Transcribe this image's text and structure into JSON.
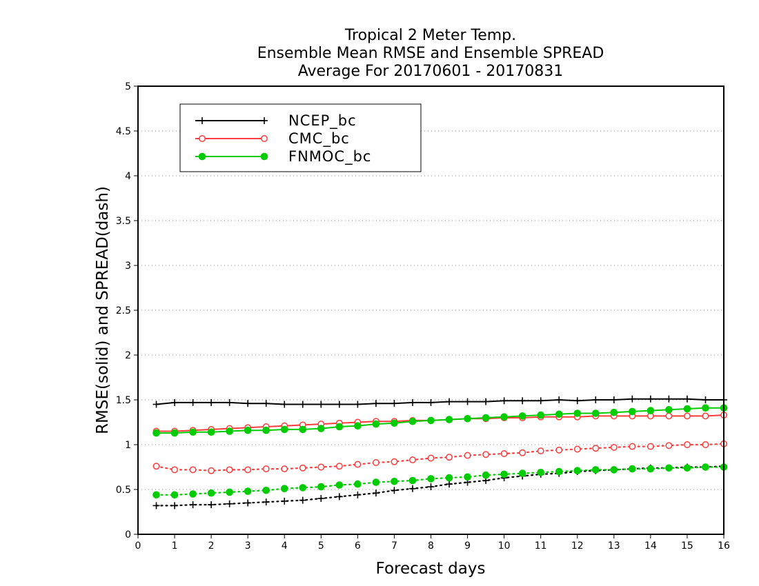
{
  "chart_data": {
    "type": "line",
    "title": [
      "Tropical 2 Meter Temp.",
      "Ensemble Mean RMSE and Ensemble SPREAD",
      "Average For 20170601 - 20170831"
    ],
    "xlabel": "Forecast days",
    "ylabel": "RMSE(solid) and SPREAD(dash)",
    "xlim": [
      0,
      16
    ],
    "ylim": [
      0,
      5
    ],
    "x_ticks": [
      "0",
      "1",
      "2",
      "3",
      "4",
      "5",
      "6",
      "7",
      "8",
      "9",
      "10",
      "11",
      "12",
      "13",
      "14",
      "15",
      "16"
    ],
    "y_ticks": [
      "0",
      "0.5",
      "1",
      "1.5",
      "2",
      "2.5",
      "3",
      "3.5",
      "4",
      "4.5",
      "5"
    ],
    "grid": "dotted horizontal",
    "legend_position": "top-left",
    "x": [
      0.5,
      1,
      1.5,
      2,
      2.5,
      3,
      3.5,
      4,
      4.5,
      5,
      5.5,
      6,
      6.5,
      7,
      7.5,
      8,
      8.5,
      9,
      9.5,
      10,
      10.5,
      11,
      11.5,
      12,
      12.5,
      13,
      13.5,
      14,
      14.5,
      15,
      15.5,
      16
    ],
    "series": [
      {
        "name": "NCEP_bc",
        "color": "#000000",
        "marker": "plus",
        "rmse": [
          1.45,
          1.47,
          1.47,
          1.47,
          1.47,
          1.46,
          1.46,
          1.45,
          1.45,
          1.45,
          1.45,
          1.45,
          1.46,
          1.46,
          1.47,
          1.47,
          1.48,
          1.48,
          1.48,
          1.49,
          1.49,
          1.49,
          1.5,
          1.49,
          1.5,
          1.5,
          1.51,
          1.51,
          1.51,
          1.51,
          1.5,
          1.5
        ],
        "spread": [
          0.32,
          0.32,
          0.33,
          0.33,
          0.34,
          0.35,
          0.36,
          0.37,
          0.38,
          0.4,
          0.42,
          0.44,
          0.46,
          0.49,
          0.51,
          0.53,
          0.56,
          0.58,
          0.6,
          0.63,
          0.65,
          0.67,
          0.68,
          0.7,
          0.71,
          0.72,
          0.73,
          0.74,
          0.74,
          0.75,
          0.75,
          0.76
        ]
      },
      {
        "name": "CMC_bc",
        "color": "#ff3b3b",
        "marker": "open-circle",
        "rmse": [
          1.15,
          1.15,
          1.16,
          1.17,
          1.18,
          1.19,
          1.2,
          1.21,
          1.22,
          1.23,
          1.24,
          1.25,
          1.26,
          1.26,
          1.27,
          1.27,
          1.28,
          1.29,
          1.29,
          1.3,
          1.3,
          1.31,
          1.31,
          1.31,
          1.32,
          1.32,
          1.32,
          1.32,
          1.32,
          1.32,
          1.32,
          1.33
        ],
        "spread": [
          0.76,
          0.72,
          0.72,
          0.71,
          0.72,
          0.72,
          0.73,
          0.73,
          0.74,
          0.75,
          0.76,
          0.78,
          0.8,
          0.81,
          0.83,
          0.85,
          0.86,
          0.88,
          0.89,
          0.9,
          0.91,
          0.93,
          0.94,
          0.95,
          0.96,
          0.97,
          0.98,
          0.98,
          0.99,
          1.0,
          1.0,
          1.01
        ]
      },
      {
        "name": "FNMOC_bc",
        "color": "#00cc00",
        "marker": "filled-circle",
        "rmse": [
          1.13,
          1.13,
          1.14,
          1.14,
          1.15,
          1.16,
          1.16,
          1.17,
          1.17,
          1.18,
          1.2,
          1.21,
          1.23,
          1.24,
          1.26,
          1.27,
          1.28,
          1.29,
          1.3,
          1.31,
          1.32,
          1.33,
          1.34,
          1.35,
          1.35,
          1.36,
          1.37,
          1.38,
          1.39,
          1.4,
          1.41,
          1.41
        ],
        "spread": [
          0.44,
          0.44,
          0.45,
          0.46,
          0.47,
          0.48,
          0.49,
          0.51,
          0.52,
          0.53,
          0.55,
          0.56,
          0.58,
          0.59,
          0.6,
          0.62,
          0.63,
          0.64,
          0.66,
          0.67,
          0.68,
          0.69,
          0.7,
          0.71,
          0.72,
          0.72,
          0.73,
          0.73,
          0.74,
          0.74,
          0.75,
          0.75
        ]
      }
    ]
  }
}
